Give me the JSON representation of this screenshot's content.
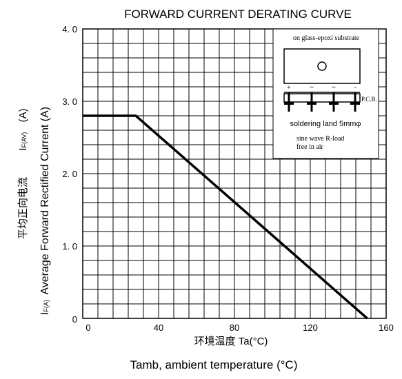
{
  "chart_data": {
    "type": "line",
    "title": "FORWARD CURRENT DERATING CURVE",
    "xlabel_cn": "环境温度 Ta(°C)",
    "xlabel": "Tamb, ambient temperature (°C)",
    "ylabel_cn": "平均正向电流",
    "ylabel": "Average Forward Rectified Current (A)",
    "ylabel_sym": "I",
    "ylabel_sym_sub": "F(AV)",
    "ylabel_sym_unit": "(A)",
    "ylabel_sym2": "I",
    "ylabel_sym2_sub": "F(A)",
    "xlim": [
      0,
      160
    ],
    "ylim": [
      0,
      4.0
    ],
    "x_ticks": [
      {
        "value": 0,
        "label": "0"
      },
      {
        "value": 40,
        "label": "40"
      },
      {
        "value": 80,
        "label": "80"
      },
      {
        "value": 120,
        "label": "120"
      },
      {
        "value": 160,
        "label": "160"
      }
    ],
    "y_ticks": [
      {
        "value": 0,
        "label": "0"
      },
      {
        "value": 1.0,
        "label": "1. 0"
      },
      {
        "value": 2.0,
        "label": "2. 0"
      },
      {
        "value": 3.0,
        "label": "3. 0"
      },
      {
        "value": 4.0,
        "label": "4. 0"
      }
    ],
    "grid": true,
    "x_grid_step": 8,
    "y_grid_step": 0.2,
    "series": [
      {
        "x": [
          0,
          28,
          150
        ],
        "y": [
          2.8,
          2.8,
          0
        ]
      }
    ],
    "inset": {
      "substrate": "on glass-epoxi substrate",
      "pins": [
        "+",
        "~",
        "~",
        "-"
      ],
      "pcb": "P.C.B.",
      "land": "soldering land 5mmφ",
      "note1": "sine wave R-load",
      "note2": "free in air"
    }
  }
}
